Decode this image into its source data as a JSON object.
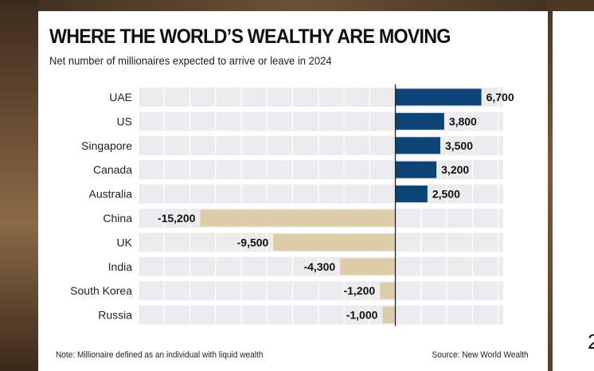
{
  "colors": {
    "positive": "#0d4478",
    "negative": "#dccda8",
    "band": "#ececef",
    "zero_line": "#222222"
  },
  "chart_data": {
    "type": "bar",
    "orientation": "horizontal",
    "title": "WHERE THE WORLD’S WEALTHY ARE MOVING",
    "subtitle": "Net number of millionaires expected to arrive or leave in 2024",
    "categories": [
      "UAE",
      "US",
      "Singapore",
      "Canada",
      "Australia",
      "China",
      "UK",
      "India",
      "South Korea",
      "Russia"
    ],
    "values": [
      6700,
      3800,
      3500,
      3200,
      2500,
      -15200,
      -9500,
      -4300,
      -1200,
      -1000
    ],
    "value_labels": [
      "6,700",
      "3,800",
      "3,500",
      "3,200",
      "2,500",
      "-15,200",
      "-9,500",
      "-4,300",
      "-1,200",
      "-1,000"
    ],
    "xlim": [
      -20000,
      8400
    ],
    "grid": true,
    "legend": "none"
  },
  "footer": {
    "note": "Note: Millionaire defined as an individual with liquid wealth",
    "source": "Source: New World Wealth"
  }
}
